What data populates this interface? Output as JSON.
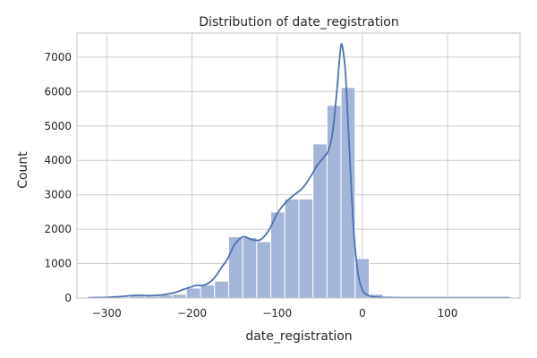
{
  "chart_data": {
    "type": "bar",
    "title": "Distribution of date_registration",
    "xlabel": "date_registration",
    "ylabel": "Count",
    "xlim": [
      -335,
      185
    ],
    "ylim": [
      0,
      7700
    ],
    "grid": true,
    "legend": "none",
    "bar_color": "#a3b5d8",
    "kde_color": "#4c72b0",
    "xticks": [
      -300,
      -200,
      -100,
      0,
      100
    ],
    "yticks": [
      0,
      1000,
      2000,
      3000,
      4000,
      5000,
      6000,
      7000
    ],
    "bins": {
      "edges": [
        -322,
        -305.5,
        -289,
        -272.5,
        -256,
        -239.5,
        -223,
        -206.5,
        -190,
        -173.5,
        -157,
        -140.5,
        -124,
        -107.5,
        -91,
        -74.5,
        -58,
        -41.5,
        -25,
        -8.5,
        8,
        24.5,
        41,
        57.5,
        74,
        90.5,
        107,
        123.5,
        140,
        156.5,
        173
      ],
      "counts": [
        5,
        10,
        25,
        60,
        55,
        90,
        110,
        290,
        380,
        490,
        1780,
        1760,
        1640,
        2500,
        2880,
        2880,
        4480,
        5600,
        6120,
        1150,
        110,
        30,
        15,
        10,
        10,
        10,
        10,
        10,
        10,
        10
      ]
    },
    "kde": {
      "x": [
        -322,
        -300,
        -280,
        -265,
        -250,
        -235,
        -220,
        -210,
        -200,
        -195,
        -185,
        -175,
        -165,
        -158,
        -150,
        -140,
        -130,
        -120,
        -110,
        -100,
        -90,
        -80,
        -70,
        -60,
        -55,
        -50,
        -45,
        -40,
        -35,
        -30,
        -27,
        -25,
        -23,
        -20,
        -17,
        -14,
        -10,
        -5,
        0,
        5,
        10,
        20,
        30,
        50,
        80,
        120,
        173
      ],
      "y": [
        10,
        20,
        50,
        80,
        70,
        90,
        160,
        250,
        330,
        370,
        380,
        550,
        900,
        1150,
        1550,
        1780,
        1700,
        1690,
        1960,
        2450,
        2780,
        3000,
        3200,
        3560,
        3780,
        3950,
        4100,
        4280,
        4800,
        6000,
        6900,
        7360,
        7250,
        6600,
        5200,
        3700,
        1900,
        700,
        240,
        100,
        50,
        20,
        15,
        10,
        10,
        10,
        10
      ]
    }
  }
}
